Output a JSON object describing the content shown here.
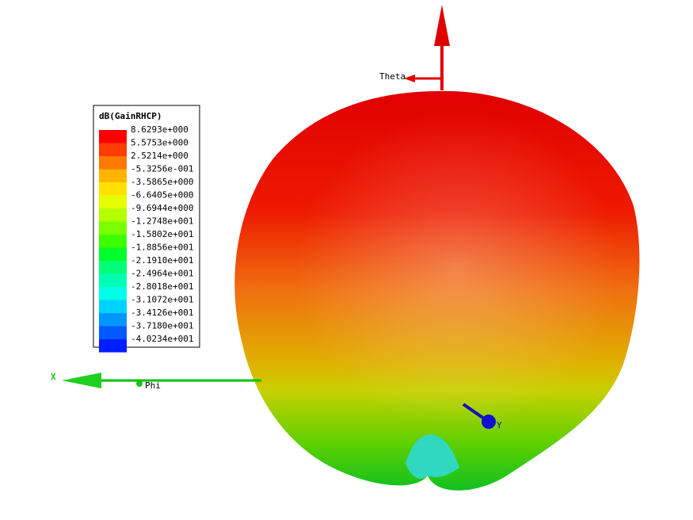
{
  "legend": {
    "title": "dB(GainRHCP)",
    "entries": [
      {
        "label": "8.6293e+000",
        "color": "#ff0000"
      },
      {
        "label": "5.5753e+000",
        "color": "#ff3c00"
      },
      {
        "label": "2.5214e+000",
        "color": "#ff7800"
      },
      {
        "label": "-5.3256e-001",
        "color": "#ffb400"
      },
      {
        "label": "-3.5865e+000",
        "color": "#ffe100"
      },
      {
        "label": "-6.6405e+000",
        "color": "#e6ff00"
      },
      {
        "label": "-9.6944e+000",
        "color": "#b4ff00"
      },
      {
        "label": "-1.2748e+001",
        "color": "#78ff00"
      },
      {
        "label": "-1.5802e+001",
        "color": "#3cff00"
      },
      {
        "label": "-1.8856e+001",
        "color": "#00ff28"
      },
      {
        "label": "-2.1910e+001",
        "color": "#00ff78"
      },
      {
        "label": "-2.4964e+001",
        "color": "#00ffb4"
      },
      {
        "label": "-2.8018e+001",
        "color": "#00ffe6"
      },
      {
        "label": "-3.1072e+001",
        "color": "#00d2ff"
      },
      {
        "label": "-3.4126e+001",
        "color": "#0096ff"
      },
      {
        "label": "-3.7180e+001",
        "color": "#005aff"
      },
      {
        "label": "-4.0234e+001",
        "color": "#001eff"
      }
    ]
  },
  "axes": {
    "theta": "Theta",
    "phi": "Phi",
    "x": "X",
    "y": "Y"
  }
}
